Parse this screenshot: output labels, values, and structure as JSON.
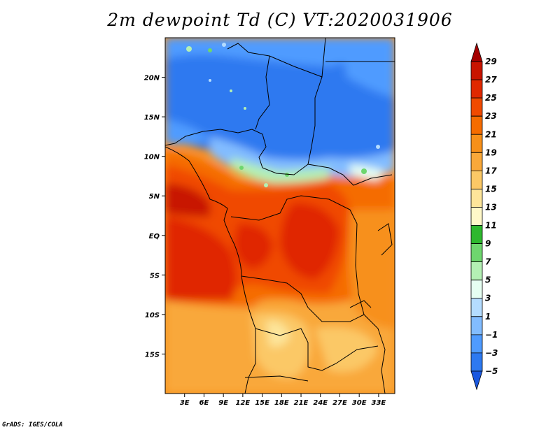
{
  "title": "2m dewpoint Td (C) VT:2020031906",
  "credit": "GrADS: IGES/COLA",
  "map": {
    "lon_range": [
      0,
      35.5
    ],
    "lat_range": [
      -20,
      25
    ],
    "x_ticks": [
      "3E",
      "6E",
      "9E",
      "12E",
      "15E",
      "18E",
      "21E",
      "24E",
      "27E",
      "30E",
      "33E"
    ],
    "x_tick_values": [
      3,
      6,
      9,
      12,
      15,
      18,
      21,
      24,
      27,
      30,
      33
    ],
    "y_ticks": [
      "20N",
      "15N",
      "10N",
      "5N",
      "EQ",
      "5S",
      "10S",
      "15S"
    ],
    "y_tick_values": [
      20,
      15,
      10,
      5,
      0,
      -5,
      -10,
      -15
    ]
  },
  "colorbar": {
    "labels": [
      "29",
      "27",
      "25",
      "23",
      "21",
      "19",
      "17",
      "15",
      "13",
      "11",
      "9",
      "7",
      "5",
      "3",
      "1",
      "−1",
      "−3",
      "−5"
    ],
    "colors": [
      "#a50000",
      "#c81400",
      "#e02800",
      "#f04a00",
      "#f56c00",
      "#f7901a",
      "#f9a83a",
      "#fbc866",
      "#fde59a",
      "#fff8c8",
      "#2eb82e",
      "#6ed66e",
      "#b4f0b4",
      "#e6fff2",
      "#b4dcff",
      "#82bcff",
      "#4f9bff",
      "#2d79f0",
      "#1a58e0"
    ]
  }
}
